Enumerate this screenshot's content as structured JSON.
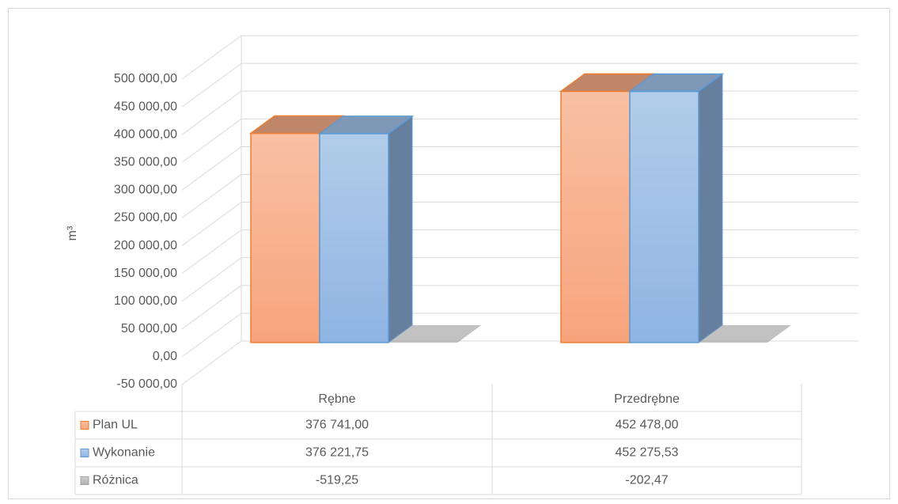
{
  "chart_data": {
    "type": "bar3d",
    "y_label": "m³",
    "categories": [
      "Rębne",
      "Przedrębne"
    ],
    "series": [
      {
        "name": "Plan UL",
        "color": "#ed7d31",
        "values": [
          376741.0,
          452478.0
        ],
        "value_labels": [
          "376 741,00",
          "452 478,00"
        ]
      },
      {
        "name": "Wykonanie",
        "color": "#5b9bd5",
        "values": [
          376221.75,
          452275.53
        ],
        "value_labels": [
          "376 221,75",
          "452 275,53"
        ]
      },
      {
        "name": "Różnica",
        "color": "#a5a5a5",
        "values": [
          -519.25,
          -202.47
        ],
        "value_labels": [
          "-519,25",
          "-202,47"
        ]
      }
    ],
    "ylim": [
      -50000,
      500000
    ],
    "yticks": [
      {
        "value": -50000,
        "label": "-50 000,00"
      },
      {
        "value": 0,
        "label": "0,00"
      },
      {
        "value": 50000,
        "label": "50 000,00"
      },
      {
        "value": 100000,
        "label": "100 000,00"
      },
      {
        "value": 150000,
        "label": "150 000,00"
      },
      {
        "value": 200000,
        "label": "200 000,00"
      },
      {
        "value": 250000,
        "label": "250 000,00"
      },
      {
        "value": 300000,
        "label": "300 000,00"
      },
      {
        "value": 350000,
        "label": "350 000,00"
      },
      {
        "value": 400000,
        "label": "400 000,00"
      },
      {
        "value": 450000,
        "label": "450 000,00"
      },
      {
        "value": 500000,
        "label": "500 000,00"
      }
    ],
    "grid": true
  }
}
